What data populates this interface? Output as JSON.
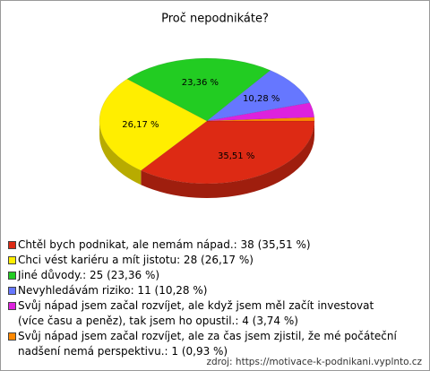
{
  "chart_data": {
    "type": "pie",
    "title": "Proč nepodnikáte?",
    "categories": [
      "Chtěl bych podnikat, ale nemám nápad.: 38 (35,51 %)",
      "Chci vést kariéru a mít jistotu: 28 (26,17 %)",
      "Jiné důvody.: 25 (23,36 %)",
      "Nevyhledávám riziko: 11 (10,28 %)",
      "Svůj nápad jsem začal rozvíjet, ale když jsem měl začít investovat (více času a peněz), tak jsem ho opustil.: 4 (3,74 %)",
      "Svůj nápad jsem začal rozvíjet, ale za čas jsem zjistil, že mé počáteční nadšení nemá perspektivu.: 1 (0,93 %)"
    ],
    "values": [
      35.51,
      26.17,
      23.36,
      10.28,
      3.74,
      0.93
    ],
    "value_labels": [
      "35,51 %",
      "26,17 %",
      "23,36 %",
      "10,28 %",
      null,
      null
    ],
    "colors": [
      "#dd2a14",
      "#ffee00",
      "#22cc22",
      "#6677ff",
      "#dd22dd",
      "#ff8800"
    ],
    "source": "zdroj: https://motivace-k-podnikani.vyplnto.cz"
  }
}
